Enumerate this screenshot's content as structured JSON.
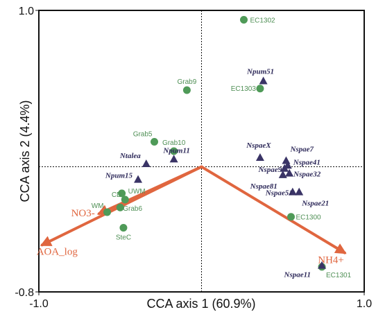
{
  "colors": {
    "site": "#4f9a58",
    "site_label": "#4f8f55",
    "taxon": "#3a3466",
    "taxon_label": "#2e2a5a",
    "arrow": "#e0663f",
    "frame": "#111111"
  },
  "chart_data": {
    "type": "scatter",
    "title": "",
    "xlabel": "CCA axis 1 (60.9%)",
    "ylabel": "CCA axis 2 (4.4%)",
    "xlim": [
      -1.0,
      1.0
    ],
    "ylim": [
      -0.8,
      1.0
    ],
    "x_tick_labels": [
      {
        "value": -1.0,
        "label": "-1.0"
      },
      {
        "value": 1.0,
        "label": "1.0"
      }
    ],
    "y_tick_labels": [
      {
        "value": 1.0,
        "label": "1.0"
      },
      {
        "value": -0.8,
        "label": "-0.8"
      }
    ],
    "zero_lines": true,
    "sites": [
      {
        "name": "EC1302",
        "x": 0.26,
        "y": 0.94
      },
      {
        "name": "Grab9",
        "x": -0.09,
        "y": 0.49
      },
      {
        "name": "EC1303",
        "x": 0.36,
        "y": 0.5
      },
      {
        "name": "Grab5",
        "x": -0.29,
        "y": 0.16
      },
      {
        "name": "Grab10",
        "x": -0.17,
        "y": 0.1
      },
      {
        "name": "UWM",
        "x": -0.49,
        "y": -0.17
      },
      {
        "name": "CD",
        "x": -0.47,
        "y": -0.21
      },
      {
        "name": "Grab6",
        "x": -0.5,
        "y": -0.26
      },
      {
        "name": "WM",
        "x": -0.58,
        "y": -0.29
      },
      {
        "name": "SteC",
        "x": -0.48,
        "y": -0.39
      },
      {
        "name": "EC1300",
        "x": 0.55,
        "y": -0.32
      },
      {
        "name": "EC1301",
        "x": 0.74,
        "y": -0.64
      }
    ],
    "taxa": [
      {
        "name": "Npum51",
        "x": 0.38,
        "y": 0.55
      },
      {
        "name": "Ntalea",
        "x": -0.34,
        "y": 0.02
      },
      {
        "name": "Npum11",
        "x": -0.17,
        "y": 0.05
      },
      {
        "name": "Npum15",
        "x": -0.39,
        "y": -0.08
      },
      {
        "name": "NspaeX",
        "x": 0.36,
        "y": 0.06
      },
      {
        "name": "Nspae7",
        "x": 0.52,
        "y": 0.04
      },
      {
        "name": "Nspae41",
        "x": 0.53,
        "y": 0.01
      },
      {
        "name": "Nspae9",
        "x": 0.51,
        "y": -0.01
      },
      {
        "name": "Nspae32",
        "x": 0.54,
        "y": -0.04
      },
      {
        "name": "Nspae81",
        "x": 0.5,
        "y": -0.05
      },
      {
        "name": "Nspae51",
        "x": 0.56,
        "y": -0.16
      },
      {
        "name": "Nspae21",
        "x": 0.6,
        "y": -0.16
      },
      {
        "name": "Nspae11",
        "x": 0.74,
        "y": -0.63
      }
    ],
    "env_vectors": [
      {
        "name": "NO3-",
        "x": -0.63,
        "y": -0.3
      },
      {
        "name": "AOA_log",
        "x": -0.98,
        "y": -0.5
      },
      {
        "name": "NH4+",
        "x": 0.88,
        "y": -0.55
      }
    ]
  }
}
